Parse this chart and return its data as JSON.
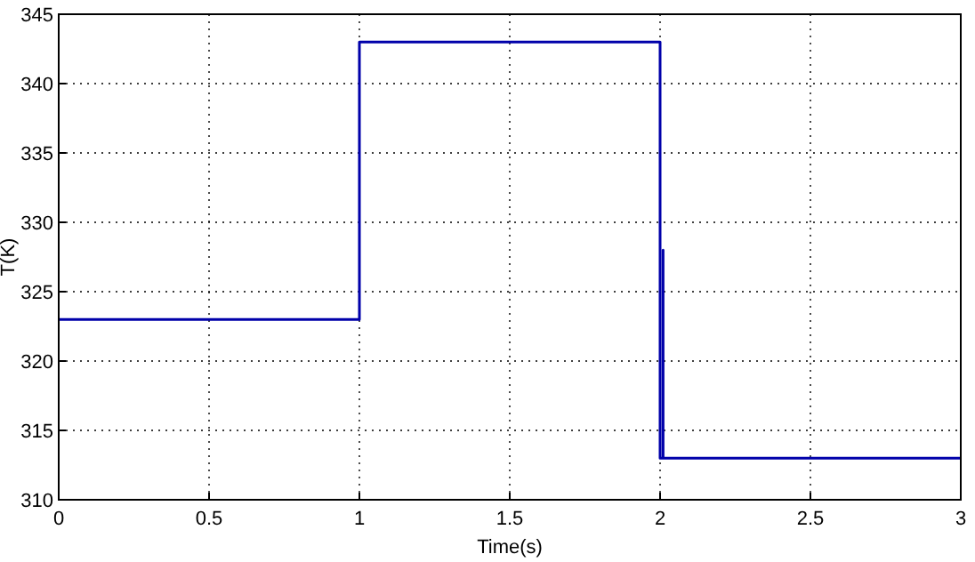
{
  "chart_data": {
    "type": "line",
    "xlabel": "Time(s)",
    "ylabel": "T(K)",
    "x": [
      0,
      1,
      1,
      2,
      2,
      2.01,
      2.01,
      2.01,
      3
    ],
    "series": [
      {
        "color": "#0000aa",
        "values": [
          323,
          323,
          343,
          343,
          313,
          313,
          328,
          313,
          313
        ]
      }
    ],
    "xlim": [
      0,
      3
    ],
    "xticks": [
      0,
      0.5,
      1,
      1.5,
      2,
      2.5,
      3
    ],
    "ylim": [
      310,
      345
    ],
    "yticks": [
      310,
      315,
      320,
      325,
      330,
      335,
      340,
      345
    ],
    "grid": true,
    "marker": "none",
    "line_style": "solid"
  }
}
